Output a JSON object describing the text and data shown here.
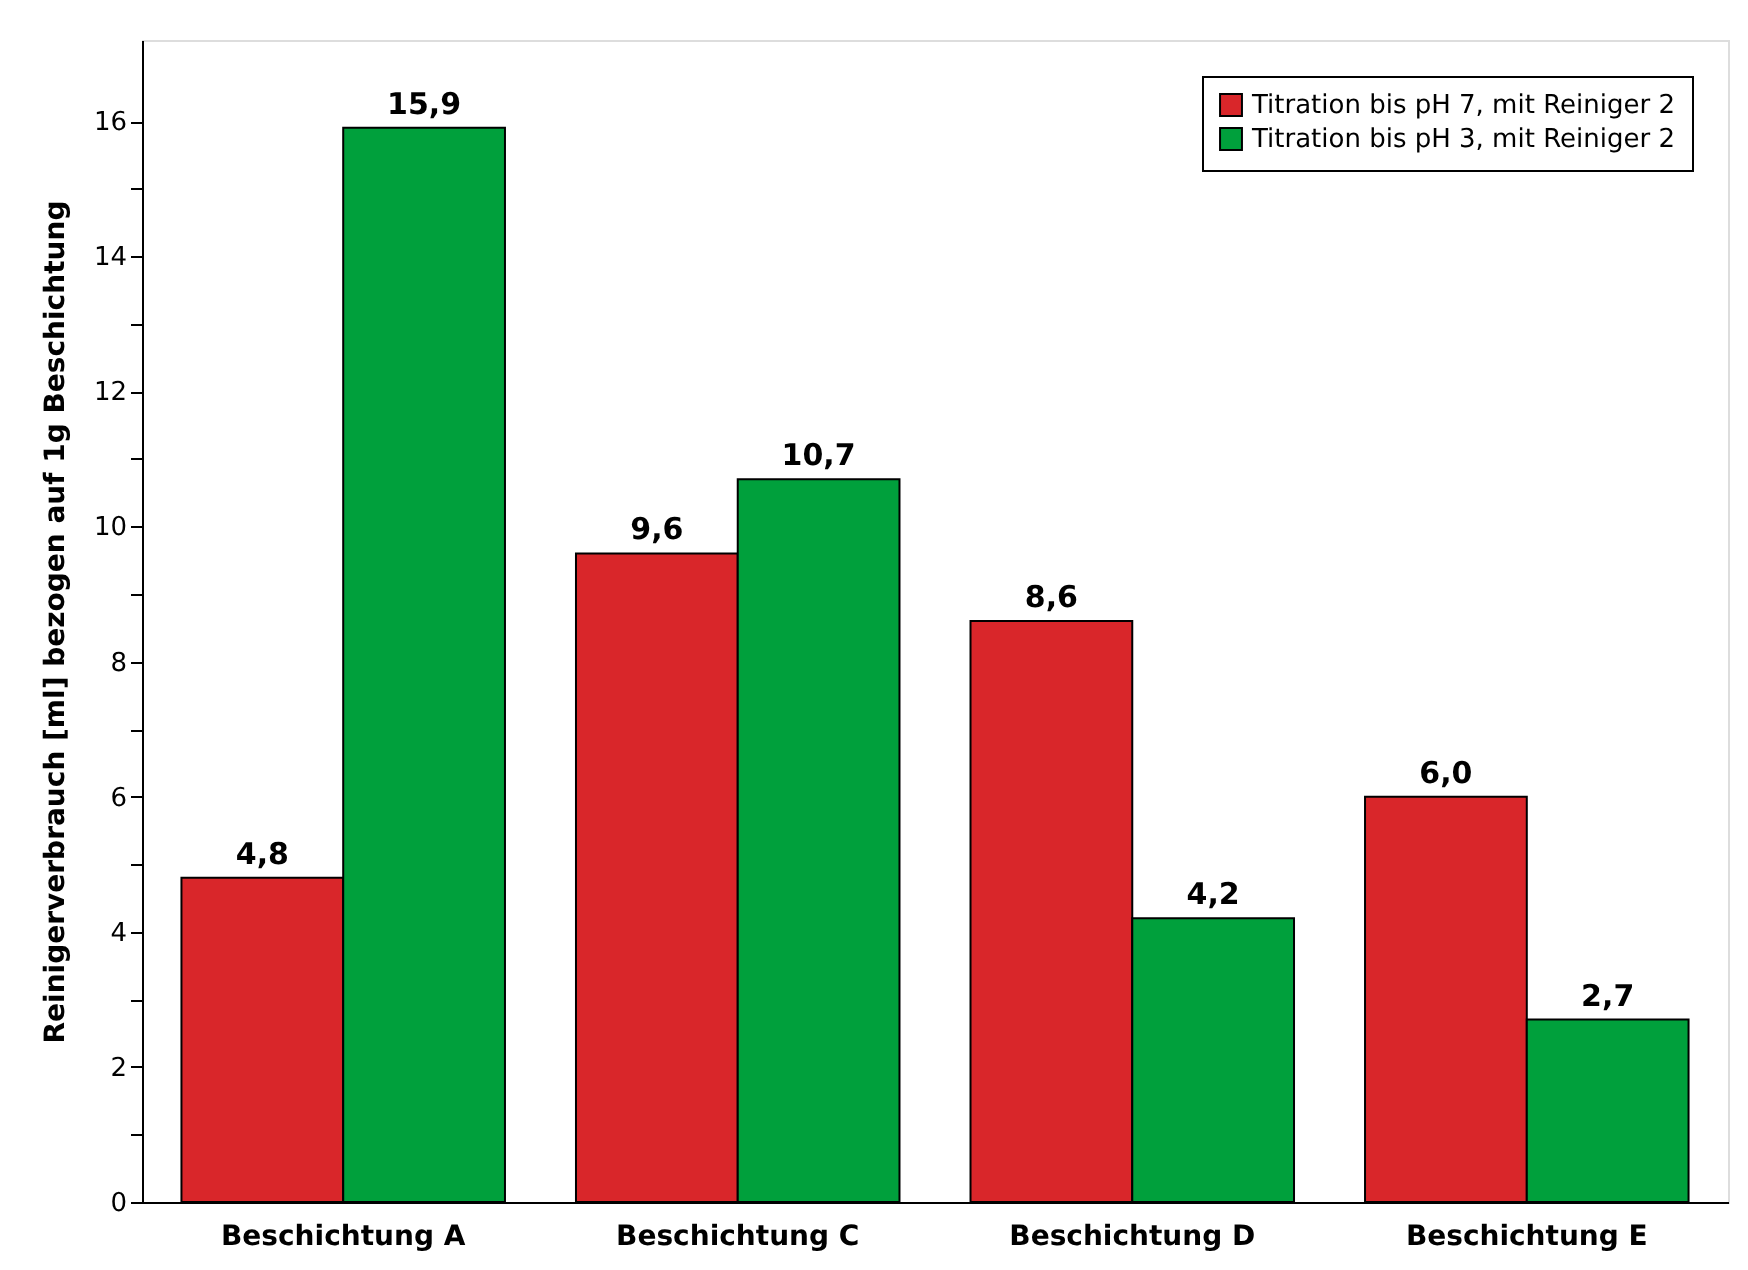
{
  "chart_data": {
    "type": "bar",
    "ylabel": "Reinigerverbrauch [ml] bezogen auf 1g Beschichtung",
    "categories": [
      "Beschichtung A",
      "Beschichtung C",
      "Beschichtung D",
      "Beschichtung E"
    ],
    "series": [
      {
        "name": "Titration bis pH 7, mit Reiniger 2",
        "color": "#d9262a",
        "values": [
          4.8,
          9.6,
          8.6,
          6.0
        ],
        "value_labels": [
          "4,8",
          "9,6",
          "8,6",
          "6,0"
        ]
      },
      {
        "name": "Titration bis pH 3, mit Reiniger 2",
        "color": "#00a03c",
        "values": [
          15.9,
          10.7,
          4.2,
          2.7
        ],
        "value_labels": [
          "15,9",
          "10,7",
          "4,2",
          "2,7"
        ]
      }
    ],
    "ylim": [
      0,
      17.2
    ],
    "yticks": [
      0,
      {
        "value": 1,
        "label": null
      },
      2,
      {
        "value": 3,
        "label": null
      },
      4,
      {
        "value": 5,
        "label": null
      },
      6,
      {
        "value": 7,
        "label": null
      },
      8,
      {
        "value": 9,
        "label": null
      },
      10,
      {
        "value": 11,
        "label": null
      },
      12,
      {
        "value": 13,
        "label": null
      },
      14,
      {
        "value": 15,
        "label": null
      },
      16
    ],
    "grid": false,
    "legend": "top right"
  }
}
